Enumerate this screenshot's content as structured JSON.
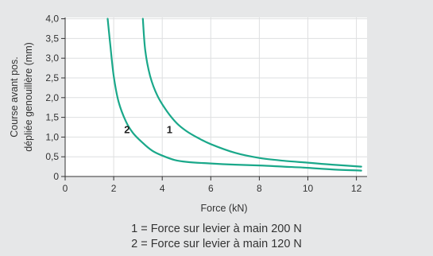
{
  "chart_data": {
    "type": "line",
    "xlabel": "Force (kN)",
    "ylabel": [
      "Course avant pos.",
      "dépliée genouillère (mm)"
    ],
    "xlim": [
      0,
      12.4
    ],
    "ylim": [
      0,
      4.0
    ],
    "x_ticks": [
      "0",
      "2",
      "4",
      "6",
      "8",
      "10",
      "12"
    ],
    "y_ticks": [
      "0",
      "0,5",
      "1,0",
      "1,5",
      "2,0",
      "2,5",
      "3,0",
      "3,5",
      "4,0"
    ],
    "grid": true,
    "series": [
      {
        "name": "1",
        "color": "#1aa88a",
        "points": [
          [
            3.2,
            4.0
          ],
          [
            3.3,
            3.2
          ],
          [
            3.5,
            2.55
          ],
          [
            3.8,
            2.05
          ],
          [
            4.2,
            1.65
          ],
          [
            4.6,
            1.35
          ],
          [
            5.0,
            1.15
          ],
          [
            5.5,
            0.97
          ],
          [
            6.0,
            0.82
          ],
          [
            7.0,
            0.6
          ],
          [
            8.0,
            0.47
          ],
          [
            9.0,
            0.4
          ],
          [
            10.0,
            0.35
          ],
          [
            11.0,
            0.3
          ],
          [
            12.2,
            0.25
          ]
        ]
      },
      {
        "name": "2",
        "color": "#1aa88a",
        "points": [
          [
            1.75,
            4.0
          ],
          [
            1.85,
            3.4
          ],
          [
            2.0,
            2.55
          ],
          [
            2.2,
            1.9
          ],
          [
            2.5,
            1.4
          ],
          [
            2.8,
            1.1
          ],
          [
            3.2,
            0.85
          ],
          [
            3.6,
            0.65
          ],
          [
            4.0,
            0.53
          ],
          [
            4.5,
            0.42
          ],
          [
            5.0,
            0.37
          ],
          [
            6.0,
            0.33
          ],
          [
            7.0,
            0.3
          ],
          [
            8.0,
            0.28
          ],
          [
            9.0,
            0.25
          ],
          [
            10.0,
            0.22
          ],
          [
            11.0,
            0.18
          ],
          [
            12.2,
            0.15
          ]
        ]
      }
    ],
    "annotations": [
      {
        "text": "1",
        "x": 4.3,
        "y": 1.2
      },
      {
        "text": "2",
        "x": 2.55,
        "y": 1.2
      }
    ]
  },
  "legend": {
    "line1": "1 = Force sur levier à main 200 N",
    "line2": "2 = Force sur levier à main 120 N"
  },
  "colors": {
    "background": "#e6e7e8",
    "plot_area": "#ffffff",
    "curve": "#1aa88a",
    "grid": "#dedfe0"
  }
}
